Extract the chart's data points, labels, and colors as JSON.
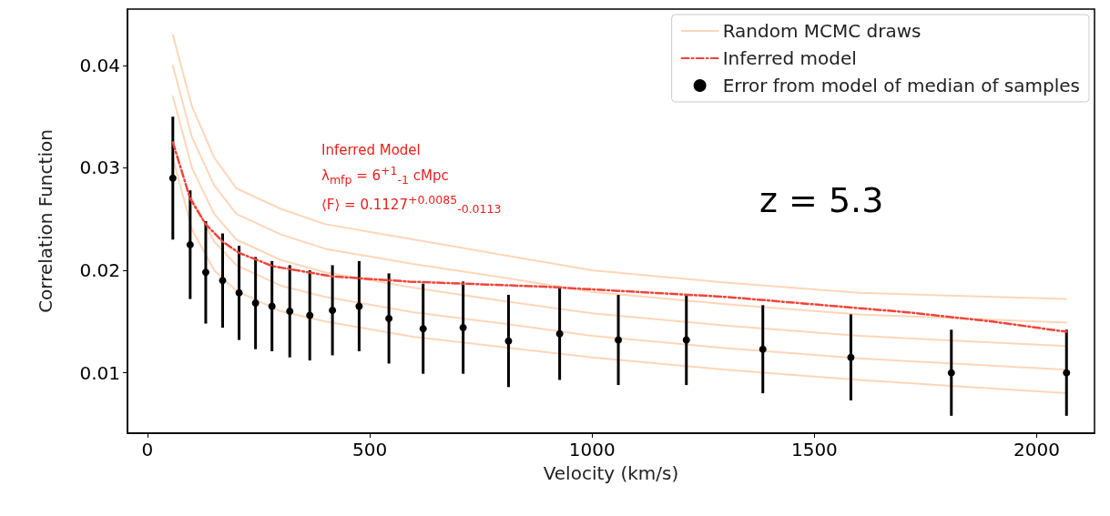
{
  "chart_data": {
    "type": "line",
    "xlabel": "Velocity (km/s)",
    "ylabel": "Correlation Function",
    "xlim": [
      -45,
      2130
    ],
    "xticks": [
      0,
      500,
      1000,
      1500,
      2000
    ],
    "ylim": [
      0.0041,
      0.0455
    ],
    "yticks": [
      0.01,
      0.02,
      0.03,
      0.04
    ],
    "grid": false,
    "legend": "top right",
    "annotations": [
      "Inferred Model",
      "λ$_{mfp}$ = 6$^{+1}$$_{-1}$ cMpc",
      "⟨F⟩ = 0.1127$^{+0.0085}$$_{-0.0113}$",
      "z = 5.3"
    ],
    "series": [
      {
        "name": "Random MCMC draws",
        "color": "#fdbb8a",
        "x": [
          57,
          100,
          150,
          200,
          300,
          400,
          600,
          800,
          1000,
          1300,
          1600,
          2067
        ],
        "values": [
          0.031,
          0.024,
          0.02,
          0.018,
          0.016,
          0.015,
          0.0135,
          0.0125,
          0.0115,
          0.0103,
          0.0093,
          0.008
        ]
      },
      {
        "type": "line",
        "color": "#fdbb8a",
        "x": [
          100,
          150,
          200,
          300,
          400,
          600,
          800,
          1000,
          1300,
          1600,
          2067
        ],
        "values": [
          0.027,
          0.0228,
          0.0205,
          0.0185,
          0.0174,
          0.0159,
          0.0148,
          0.0136,
          0.0124,
          0.0114,
          0.0103
        ]
      },
      {
        "type": "line",
        "color": "#fdbb8a",
        "x": [
          57,
          100,
          150,
          200,
          300,
          400,
          600,
          800,
          1000,
          1300,
          1600,
          2067
        ],
        "values": [
          0.037,
          0.03,
          0.0255,
          0.023,
          0.021,
          0.0198,
          0.0183,
          0.017,
          0.0158,
          0.0146,
          0.0136,
          0.0126
        ]
      },
      {
        "type": "line",
        "color": "#fdbb8a",
        "x": [
          57,
          100,
          150,
          200,
          300,
          400,
          600,
          800,
          1000,
          1300,
          1600,
          2067
        ],
        "values": [
          0.04,
          0.033,
          0.0283,
          0.0255,
          0.0235,
          0.0221,
          0.0206,
          0.0193,
          0.0179,
          0.0167,
          0.0157,
          0.0149
        ]
      },
      {
        "type": "line",
        "color": "#fdbb8a",
        "x": [
          57,
          100,
          150,
          200,
          300,
          400,
          600,
          800,
          1000,
          1300,
          1600,
          2067
        ],
        "values": [
          0.043,
          0.036,
          0.031,
          0.028,
          0.026,
          0.0245,
          0.023,
          0.0215,
          0.02,
          0.0188,
          0.0178,
          0.0172
        ]
      },
      {
        "name": "Inferred model",
        "color": "#f0443a",
        "line_style": "dashed",
        "x": [
          57,
          96,
          131,
          169,
          206,
          282,
          416,
          588,
          894,
          1302,
          1710,
          1900,
          2067
        ],
        "values": [
          0.0325,
          0.027,
          0.0245,
          0.0228,
          0.0217,
          0.0204,
          0.0194,
          0.0189,
          0.0184,
          0.0174,
          0.0159,
          0.015,
          0.014
        ]
      },
      {
        "name": "Error from model of median of samples",
        "type": "scatter",
        "color": "#000000",
        "marker": "circle",
        "x": [
          57,
          96,
          131,
          169,
          206,
          243,
          280,
          320,
          365,
          416,
          476,
          543,
          620,
          710,
          812,
          927,
          1059,
          1212,
          1384,
          1582,
          1808,
          2067
        ],
        "values": [
          0.029,
          0.0225,
          0.0198,
          0.019,
          0.0178,
          0.0168,
          0.0165,
          0.016,
          0.0156,
          0.0161,
          0.0165,
          0.0153,
          0.0143,
          0.0144,
          0.0131,
          0.0138,
          0.0132,
          0.0132,
          0.0123,
          0.0115,
          0.01,
          0.01
        ],
        "errors": [
          0.006,
          0.0053,
          0.005,
          0.0046,
          0.0046,
          0.0045,
          0.0044,
          0.0045,
          0.0044,
          0.0044,
          0.0044,
          0.0044,
          0.0044,
          0.0045,
          0.0045,
          0.0045,
          0.0044,
          0.0044,
          0.0043,
          0.0042,
          0.0042,
          0.0042
        ]
      }
    ]
  }
}
